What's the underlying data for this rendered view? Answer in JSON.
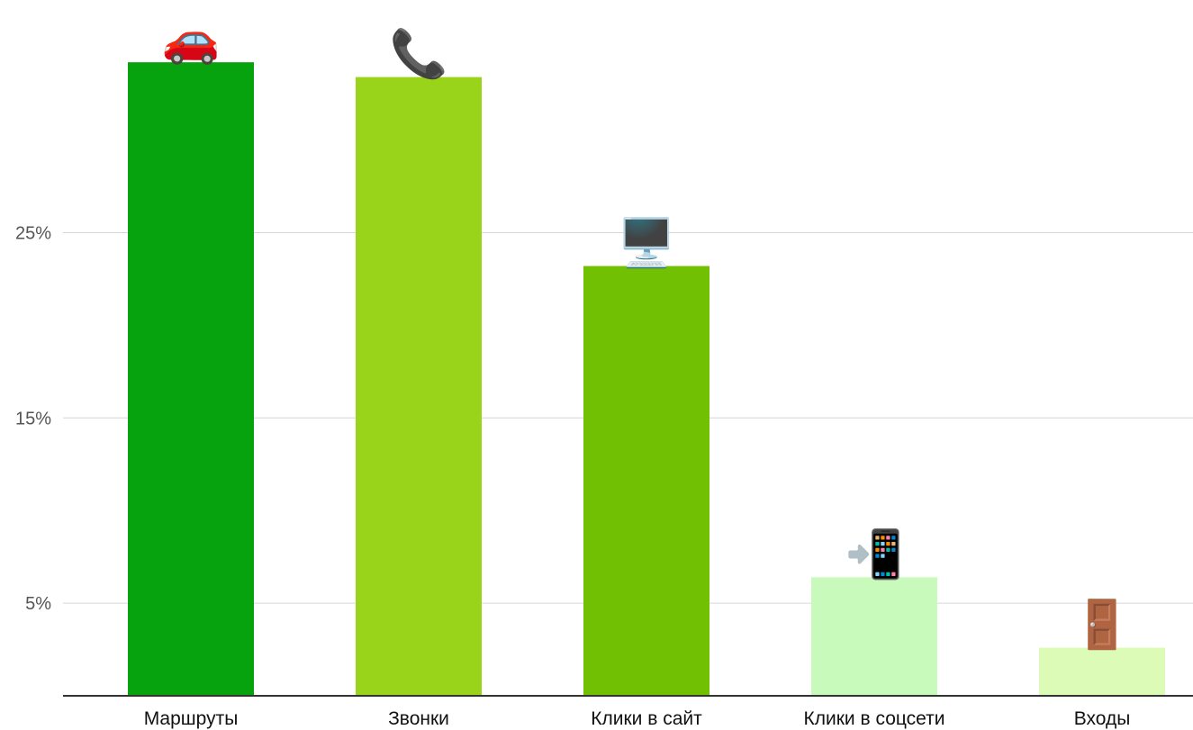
{
  "chart_data": {
    "type": "bar",
    "categories": [
      "Маршруты",
      "Звонки",
      "Клики в сайт",
      "Клики в соцсети",
      "Входы"
    ],
    "values": [
      34.2,
      33.4,
      23.2,
      6.4,
      2.6
    ],
    "colors": [
      "#07a30f",
      "#99d41a",
      "#72c004",
      "#c8fbbb",
      "#dcfbb6"
    ],
    "icons": [
      "car-icon",
      "telephone-icon",
      "desktop-computer-icon",
      "mobile-phone-with-arrow-icon",
      "door-icon"
    ],
    "icon_glyphs": [
      "🚗",
      "📞",
      "🖥️",
      "📲",
      "🚪"
    ],
    "yticks": [
      5,
      15,
      25
    ],
    "ytick_labels": [
      "5%",
      "15%",
      "25%"
    ],
    "ylim": [
      0,
      38
    ],
    "grid": true,
    "title": "",
    "xlabel": "",
    "ylabel": ""
  }
}
